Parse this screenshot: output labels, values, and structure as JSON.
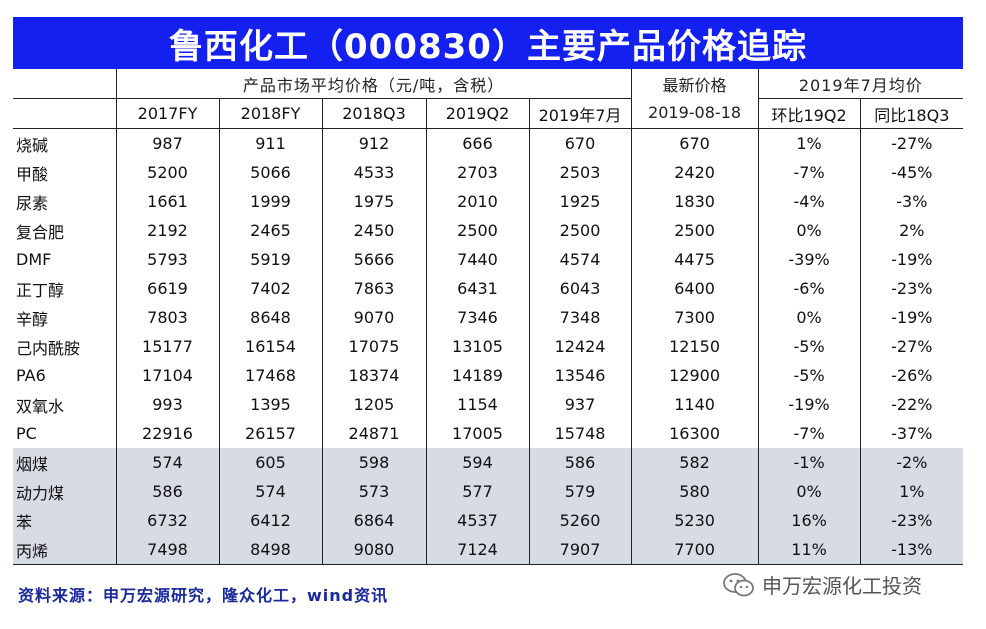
{
  "title": "鲁西化工（000830）主要产品价格追踪",
  "header": {
    "group_market": "产品市场平均价格（元/吨，含税）",
    "group_latest_line1": "最新价格",
    "group_latest_line2": "2019-08-18",
    "group_july": "2019年7月均价",
    "columns": [
      "2017FY",
      "2018FY",
      "2018Q3",
      "2019Q2",
      "2019年7月"
    ],
    "july_columns": [
      "环比19Q2",
      "同比18Q3"
    ]
  },
  "rows": [
    {
      "name": "烧碱",
      "v": [
        "987",
        "911",
        "912",
        "666",
        "670",
        "670",
        "1%",
        "-27%"
      ]
    },
    {
      "name": "甲酸",
      "v": [
        "5200",
        "5066",
        "4533",
        "2703",
        "2503",
        "2420",
        "-7%",
        "-45%"
      ]
    },
    {
      "name": "尿素",
      "v": [
        "1661",
        "1999",
        "1975",
        "2010",
        "1925",
        "1830",
        "-4%",
        "-3%"
      ]
    },
    {
      "name": "复合肥",
      "v": [
        "2192",
        "2465",
        "2450",
        "2500",
        "2500",
        "2500",
        "0%",
        "2%"
      ]
    },
    {
      "name": "DMF",
      "v": [
        "5793",
        "5919",
        "5666",
        "7440",
        "4574",
        "4475",
        "-39%",
        "-19%"
      ]
    },
    {
      "name": "正丁醇",
      "v": [
        "6619",
        "7402",
        "7863",
        "6431",
        "6043",
        "6400",
        "-6%",
        "-23%"
      ]
    },
    {
      "name": "辛醇",
      "v": [
        "7803",
        "8648",
        "9070",
        "7346",
        "7348",
        "7300",
        "0%",
        "-19%"
      ]
    },
    {
      "name": "己内酰胺",
      "v": [
        "15177",
        "16154",
        "17075",
        "13105",
        "12424",
        "12150",
        "-5%",
        "-27%"
      ]
    },
    {
      "name": "PA6",
      "v": [
        "17104",
        "17468",
        "18374",
        "14189",
        "13546",
        "12900",
        "-5%",
        "-26%"
      ]
    },
    {
      "name": "双氧水",
      "v": [
        "993",
        "1395",
        "1205",
        "1154",
        "937",
        "1140",
        "-19%",
        "-22%"
      ]
    },
    {
      "name": "PC",
      "v": [
        "22916",
        "26157",
        "24871",
        "17005",
        "15748",
        "16300",
        "-7%",
        "-37%"
      ]
    },
    {
      "name": "烟煤",
      "v": [
        "574",
        "605",
        "598",
        "594",
        "586",
        "582",
        "-1%",
        "-2%"
      ]
    },
    {
      "name": "动力煤",
      "v": [
        "586",
        "574",
        "573",
        "577",
        "579",
        "580",
        "0%",
        "1%"
      ]
    },
    {
      "name": "苯",
      "v": [
        "6732",
        "6412",
        "6864",
        "4537",
        "5260",
        "5230",
        "16%",
        "-23%"
      ]
    },
    {
      "name": "丙烯",
      "v": [
        "7498",
        "8498",
        "9080",
        "7124",
        "7907",
        "7700",
        "11%",
        "-13%"
      ]
    }
  ],
  "footer": "资料来源：申万宏源研究，隆众化工，wind资讯",
  "watermark": "申万宏源化工投资",
  "colors": {
    "title_bg": "#1420f0",
    "shade": "#d6dbe4",
    "footer": "#1a2a9a"
  }
}
